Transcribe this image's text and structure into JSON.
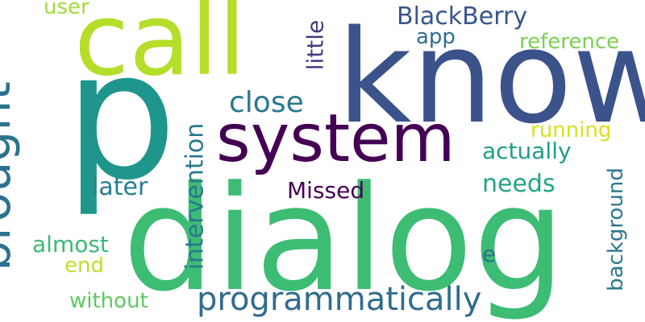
{
  "words": [
    {
      "text": "dialog",
      "color": "#3dbc74"
    },
    {
      "text": "p",
      "color": "#1f968b"
    },
    {
      "text": "know",
      "color": "#3b528b"
    },
    {
      "text": "call",
      "color": "#b5de2b"
    },
    {
      "text": "system",
      "color": "#440154"
    },
    {
      "text": "brought",
      "color": "#2c728e"
    },
    {
      "text": "programmatically",
      "color": "#2f6c8e"
    },
    {
      "text": "intervention",
      "color": "#2a788e"
    },
    {
      "text": "close",
      "color": "#2a788e"
    },
    {
      "text": "BlackBerry",
      "color": "#39568c"
    },
    {
      "text": "little",
      "color": "#453882"
    },
    {
      "text": "background",
      "color": "#2a788e"
    },
    {
      "text": "Missed",
      "color": "#440154"
    },
    {
      "text": "reference",
      "color": "#7ad151"
    },
    {
      "text": "running",
      "color": "#d8e219"
    },
    {
      "text": "actually",
      "color": "#1f9e89"
    },
    {
      "text": "needs",
      "color": "#20a486"
    },
    {
      "text": "later",
      "color": "#277f8e"
    },
    {
      "text": "almost",
      "color": "#3aba76"
    },
    {
      "text": "without",
      "color": "#5ec962"
    },
    {
      "text": "app",
      "color": "#2e6e8e"
    },
    {
      "text": "user",
      "color": "#a2da37"
    },
    {
      "text": "end",
      "color": "#bddf26"
    },
    {
      "text": "e",
      "color": "#2e6e8e"
    }
  ]
}
